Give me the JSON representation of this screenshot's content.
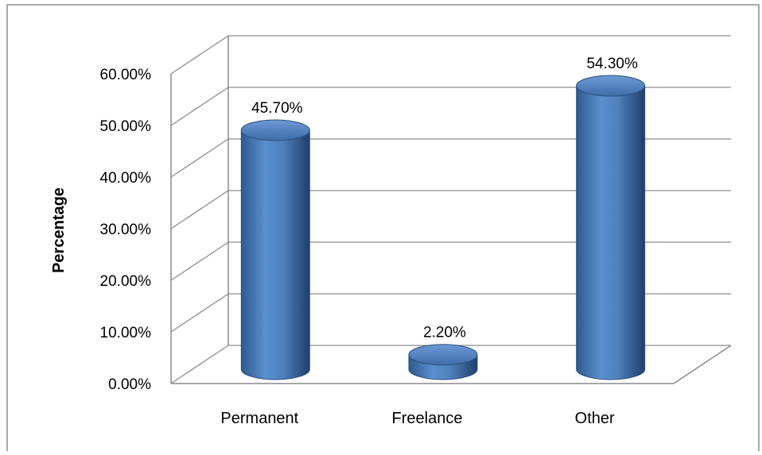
{
  "chart_data": {
    "type": "bar",
    "style": "3d-cylinder",
    "categories": [
      "Permanent",
      "Freelance",
      "Other"
    ],
    "values": [
      45.7,
      2.2,
      54.3
    ],
    "value_labels": [
      "45.70%",
      "2.20%",
      "54.30%"
    ],
    "title": "",
    "xlabel": "",
    "ylabel": "Percentage",
    "ylim": [
      0,
      60
    ],
    "yticks": [
      0,
      10,
      20,
      30,
      40,
      50,
      60
    ],
    "ytick_labels": [
      "0.00%",
      "10.00%",
      "20.00%",
      "30.00%",
      "40.00%",
      "50.00%",
      "60.00%"
    ],
    "grid": true,
    "legend": "none",
    "colors": {
      "bar": "#4F81BD",
      "bar_dark": "#2E5A8E",
      "bar_light": "#7FA7D8",
      "grid": "#8C8C8C",
      "frame": "#8C8C8C",
      "text": "#000000"
    }
  }
}
